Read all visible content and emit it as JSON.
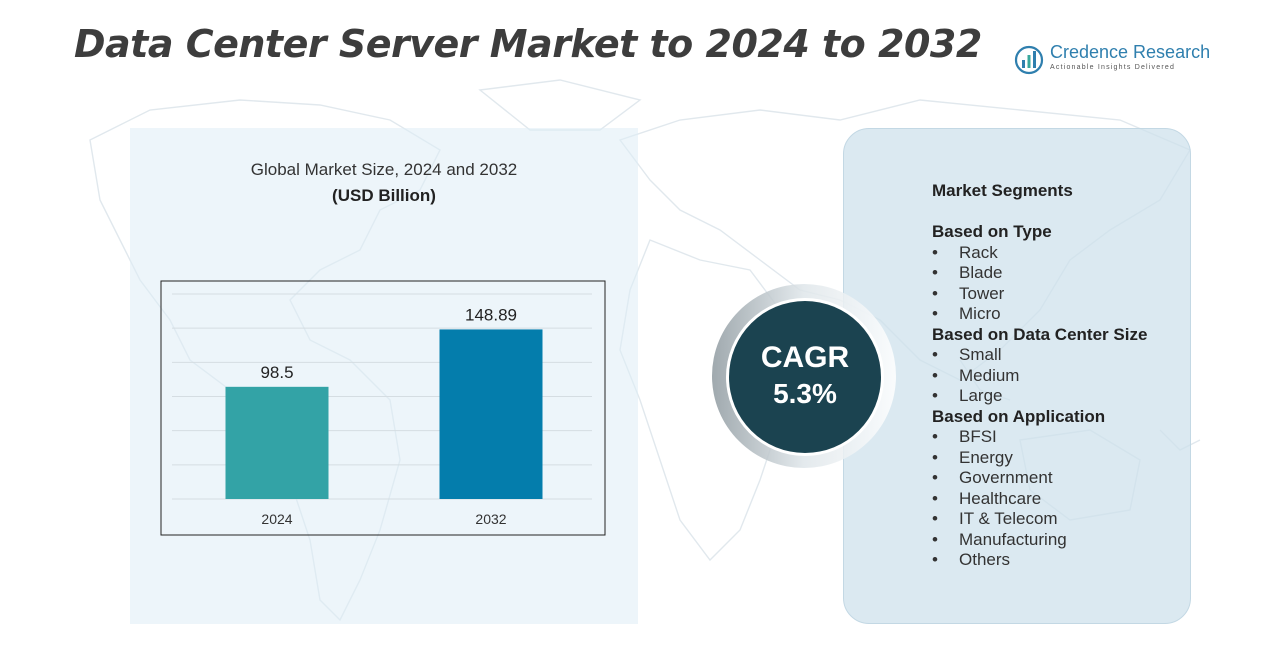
{
  "title": "Data Center Server Market to 2024 to 2032",
  "logo": {
    "name": "Credence Research",
    "tagline": "Actionable Insights Delivered",
    "icon": "credence-logo-icon"
  },
  "chart_caption": "Global Market Size,  2024 and 2032",
  "chart_unit": "(USD Billion)",
  "chart_data": {
    "type": "bar",
    "categories": [
      "2024",
      "2032"
    ],
    "values": [
      98.5,
      148.89
    ],
    "value_labels": [
      "98.5",
      "148.89"
    ],
    "colors": [
      "#33a3a6",
      "#047dac"
    ],
    "ylim": [
      0,
      180
    ],
    "grid": true,
    "title": "Global Market Size,  2024 and 2032",
    "ylabel": "(USD Billion)"
  },
  "cagr": {
    "label": "CAGR",
    "value": "5.3%"
  },
  "segments": {
    "title": "Market Segments",
    "groups": [
      {
        "heading": "Based on Type",
        "items": [
          "Rack",
          "Blade",
          "Tower",
          "Micro"
        ]
      },
      {
        "heading": "Based on Data Center Size",
        "items": [
          "Small",
          "Medium",
          "Large"
        ]
      },
      {
        "heading": "Based on Application",
        "items": [
          "BFSI",
          "Energy",
          "Government",
          "Healthcare",
          "IT & Telecom",
          "Manufacturing",
          "Others"
        ]
      }
    ]
  },
  "colors": {
    "cagr_circle": "#1b4350",
    "panel_bg": "#dfecf6",
    "segment_panel_bg": "#cde1ec",
    "brand_blue": "#2f7fae"
  }
}
